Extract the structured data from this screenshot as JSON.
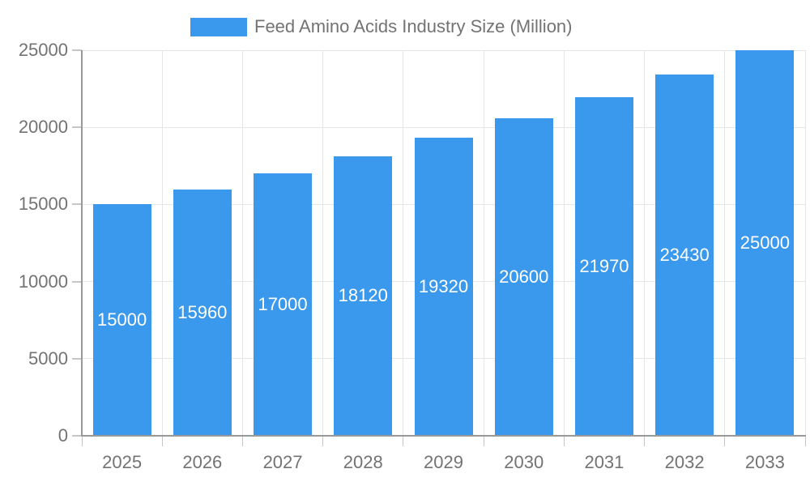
{
  "legend": {
    "label": "Feed Amino Acids Industry Size (Million)"
  },
  "colors": {
    "bar": "#3A99EC",
    "axis": "#999999",
    "gridline": "#E6E6E6",
    "tick": "#C6C6C6",
    "label_text": "#737373",
    "bar_label_text": "#FFFFFF",
    "background": "#FFFFFF"
  },
  "chart_data": {
    "type": "bar",
    "title": "Feed Amino Acids Industry Size (Million)",
    "categories": [
      "2025",
      "2026",
      "2027",
      "2028",
      "2029",
      "2030",
      "2031",
      "2032",
      "2033"
    ],
    "values": [
      15000,
      15960,
      17000,
      18120,
      19320,
      20600,
      21970,
      23430,
      25000
    ],
    "xlabel": "",
    "ylabel": "",
    "ylim": [
      0,
      25000
    ],
    "yticks": [
      0,
      5000,
      10000,
      15000,
      20000,
      25000
    ],
    "grid": true,
    "legend_position": "top-center",
    "bar_value_labels": true
  }
}
